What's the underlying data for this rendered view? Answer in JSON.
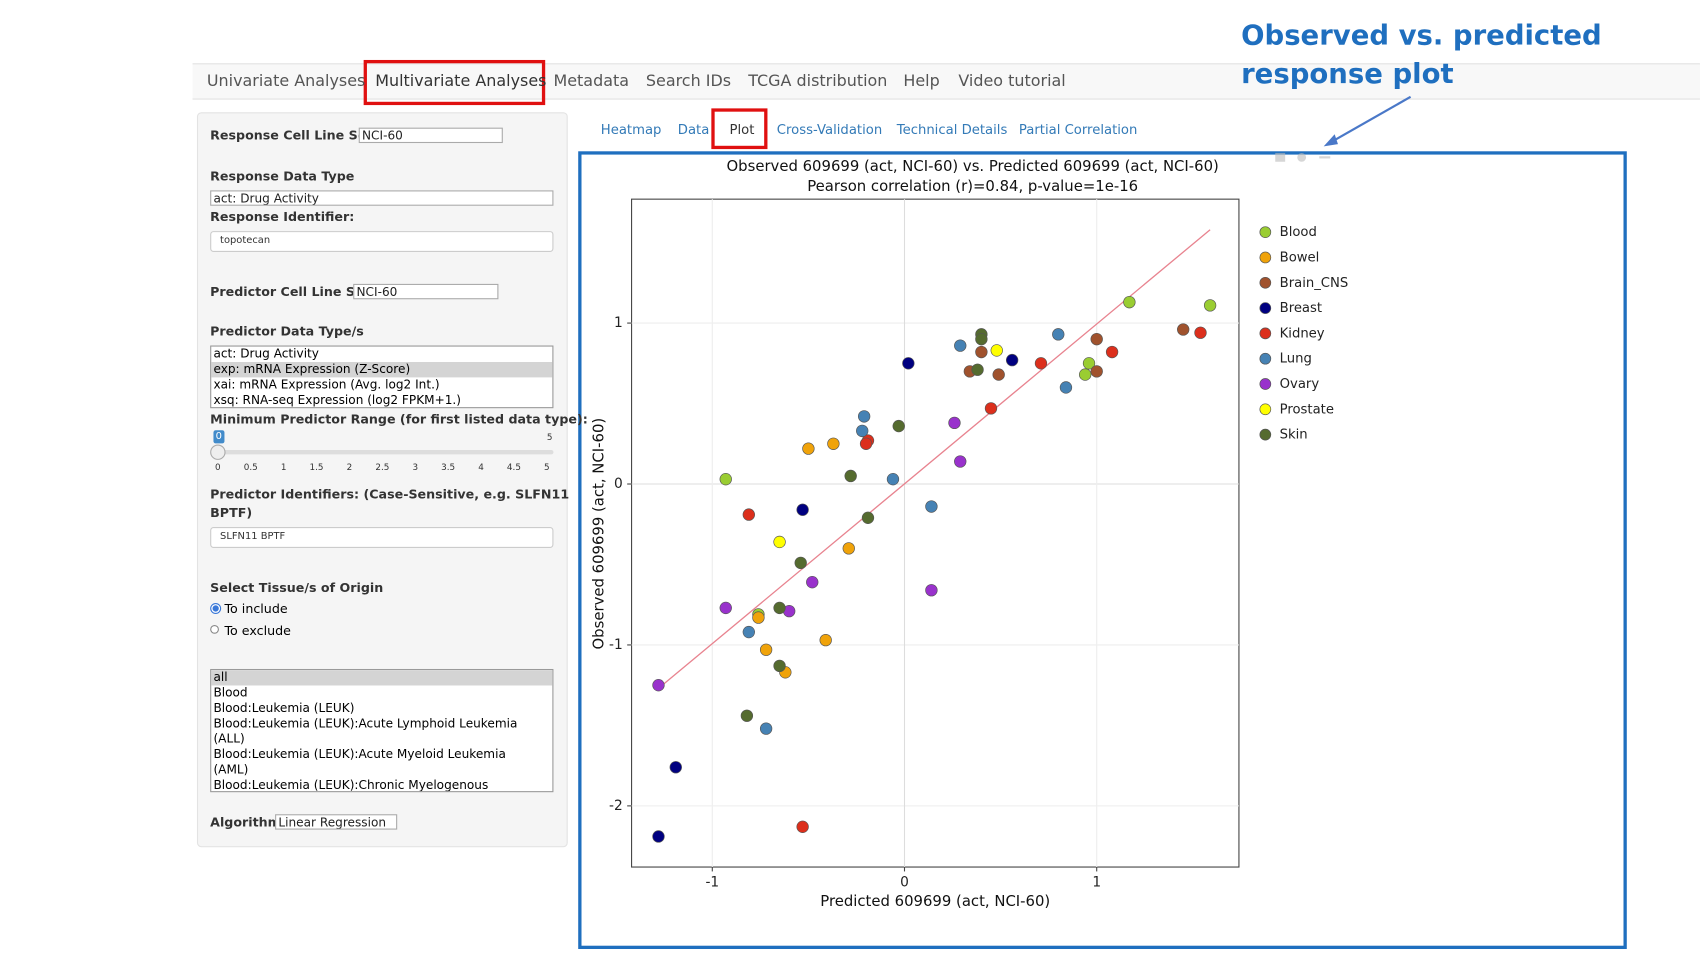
{
  "ui": {
    "nav": [
      "Univariate Analyses",
      "Multivariate Analyses",
      "Metadata",
      "Search IDs",
      "TCGA distribution",
      "Help",
      "Video tutorial"
    ],
    "subtabs": [
      "Heatmap",
      "Data",
      "Plot",
      "Cross-Validation",
      "Technical Details",
      "Partial Correlation"
    ],
    "annotation": [
      "Observed  vs. predicted",
      "response plot"
    ],
    "sidebar": {
      "response_cell_line_set": {
        "label": "Response Cell Line Set",
        "value": "NCI-60"
      },
      "response_data_type": {
        "label": "Response Data Type",
        "value": "act: Drug Activity"
      },
      "response_identifier": {
        "label": "Response Identifier:",
        "value": "topotecan"
      },
      "predictor_cell_line_set": {
        "label": "Predictor Cell Line Set",
        "value": "NCI-60"
      },
      "predictor_data_types": {
        "label": "Predictor Data Type/s",
        "items": [
          "act: Drug Activity",
          "exp: mRNA Expression (Z-Score)",
          "xai: mRNA Expression (Avg. log2 Int.)",
          "xsq: RNA-seq Expression (log2 FPKM+1.)"
        ]
      },
      "min_range": {
        "label": "Minimum Predictor Range (for first listed data type):",
        "value": "0",
        "max": "5",
        "ticks": [
          "0",
          "0.5",
          "1",
          "1.5",
          "2",
          "2.5",
          "3",
          "3.5",
          "4",
          "4.5",
          "5"
        ]
      },
      "predictor_identifiers": {
        "label": [
          "Predictor Identifiers: (Case-Sensitive, e.g. SLFN11",
          "BPTF)"
        ],
        "value": "SLFN11 BPTF"
      },
      "tissue": {
        "label": "Select Tissue/s of Origin",
        "options": [
          "To include",
          "To exclude"
        ],
        "items": [
          "all",
          "Blood",
          "Blood:Leukemia (LEUK)",
          "Blood:Leukemia (LEUK):Acute Lymphoid Leukemia (ALL)",
          "Blood:Leukemia (LEUK):Acute Myeloid Leukemia (AML)",
          "Blood:Leukemia (LEUK):Chronic Myelogenous Leukemia (CML)"
        ]
      },
      "algorithm": {
        "label": "Algorithm",
        "value": "Linear Regression"
      }
    }
  },
  "chart_data": {
    "type": "scatter",
    "title": "Observed 609699 (act, NCI-60) vs. Predicted 609699 (act, NCI-60)",
    "subtitle": "Pearson correlation (r)=0.84, p-value=1e-16",
    "x_label": "Predicted 609699 (act, NCI-60)",
    "y_label": "Observed 609699 (act, NCI-60)",
    "xlim": [
      -1.42,
      1.74
    ],
    "ylim": [
      -2.38,
      1.77
    ],
    "xticks": [
      -1,
      0,
      1
    ],
    "yticks": [
      -2,
      -1,
      0,
      1
    ],
    "grid": true,
    "fit_line": {
      "x": [
        -1.27,
        1.59
      ],
      "y": [
        -1.26,
        1.58
      ],
      "color": "#e8838f"
    },
    "series": [
      {
        "name": "Blood",
        "color": "#9acd32",
        "x": [
          -0.93,
          1.17,
          1.59,
          0.96,
          0.94,
          -0.76
        ],
        "values": [
          0.03,
          1.13,
          1.11,
          0.75,
          0.68,
          -0.81
        ]
      },
      {
        "name": "Bowel",
        "color": "#f0a30a",
        "x": [
          -0.5,
          -0.37,
          -0.29,
          -0.41,
          -0.72,
          -0.62,
          -0.76
        ],
        "values": [
          0.22,
          0.25,
          -0.4,
          -0.97,
          -1.03,
          -1.17,
          -0.83
        ]
      },
      {
        "name": "Brain_CNS",
        "color": "#a0522d",
        "x": [
          1.45,
          1.0,
          1.0,
          0.4,
          0.34,
          0.49
        ],
        "values": [
          0.96,
          0.9,
          0.7,
          0.82,
          0.7,
          0.68
        ]
      },
      {
        "name": "Breast",
        "color": "#000080",
        "x": [
          0.02,
          0.56,
          -0.53,
          -1.19,
          -1.28
        ],
        "values": [
          0.75,
          0.77,
          -0.16,
          -1.76,
          -2.19
        ]
      },
      {
        "name": "Kidney",
        "color": "#dc2f1c",
        "x": [
          1.54,
          1.08,
          0.71,
          0.45,
          -0.19,
          -0.2,
          -0.81,
          -0.53
        ],
        "values": [
          0.94,
          0.82,
          0.75,
          0.47,
          0.27,
          0.25,
          -0.19,
          -2.13
        ]
      },
      {
        "name": "Lung",
        "color": "#4682b4",
        "x": [
          0.29,
          0.8,
          0.84,
          -0.21,
          -0.22,
          -0.06,
          0.14,
          -0.81,
          -0.72
        ],
        "values": [
          0.86,
          0.93,
          0.6,
          0.42,
          0.33,
          0.03,
          -0.14,
          -0.92,
          -1.52
        ]
      },
      {
        "name": "Ovary",
        "color": "#9932cc",
        "x": [
          0.26,
          0.29,
          0.14,
          -0.48,
          -0.6,
          -0.93,
          -1.28
        ],
        "values": [
          0.38,
          0.14,
          -0.66,
          -0.61,
          -0.79,
          -0.77,
          -1.25
        ]
      },
      {
        "name": "Prostate",
        "color": "#ffff00",
        "x": [
          0.48,
          -0.65
        ],
        "values": [
          0.83,
          -0.36
        ]
      },
      {
        "name": "Skin",
        "color": "#556b2f",
        "x": [
          0.4,
          0.4,
          0.38,
          -0.03,
          -0.28,
          -0.19,
          -0.54,
          -0.65,
          -0.65,
          -0.82
        ],
        "values": [
          0.93,
          0.9,
          0.71,
          0.36,
          0.05,
          -0.21,
          -0.49,
          -0.77,
          -1.13,
          -1.44
        ]
      }
    ]
  }
}
